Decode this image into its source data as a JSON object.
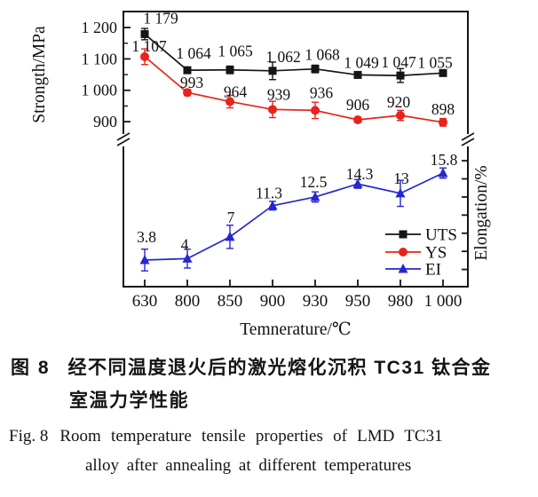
{
  "page": {
    "background": "#ffffff"
  },
  "chart_data": {
    "type": "line",
    "title": "",
    "xlabel": "Temnerature/℃",
    "ylabel_left": "Strongth/MPa",
    "ylabel_right": "Elongation/%",
    "categories": [
      630,
      800,
      850,
      900,
      930,
      950,
      980,
      1000
    ],
    "x_tick_labels": [
      "630",
      "800",
      "850",
      "900",
      "930",
      "950",
      "980",
      "1 000"
    ],
    "left_axis": {
      "unit": "MPa",
      "tick_values": [
        1200,
        1100,
        1000,
        900
      ],
      "tick_labels": [
        "1 200",
        "1 100",
        "1 000",
        "900"
      ],
      "minor_tick_values": [
        1150,
        1050,
        950
      ],
      "broken": true
    },
    "right_axis": {
      "unit": "%",
      "tick_values": [
        2.5,
        5,
        7.5,
        10,
        12.5,
        15,
        17.5
      ],
      "tick_labels": [],
      "broken": true
    },
    "grid": false,
    "legend_position": "inside-right-middle",
    "axis_color": "#151515",
    "series": [
      {
        "name": "UTS",
        "axis": "left",
        "marker": "square",
        "color": "#151515",
        "values": [
          1179,
          1064,
          1065,
          1062,
          1068,
          1049,
          1047,
          1055
        ],
        "point_labels": [
          "1 179",
          "1 064",
          "1 065",
          "1 062",
          "1 068",
          "1 049",
          "1 047",
          "1 055"
        ],
        "errors": [
          18,
          5,
          12,
          28,
          12,
          5,
          22,
          6
        ]
      },
      {
        "name": "YS",
        "axis": "left",
        "marker": "circle",
        "color": "#e8231d",
        "values": [
          1107,
          993,
          964,
          939,
          936,
          906,
          920,
          898
        ],
        "point_labels": [
          "1 107",
          "993",
          "964",
          "939",
          "936",
          "906",
          "920",
          "898"
        ],
        "errors": [
          25,
          10,
          20,
          26,
          26,
          8,
          16,
          12
        ]
      },
      {
        "name": "EI",
        "axis": "right",
        "marker": "triangle",
        "color": "#2727cf",
        "values": [
          3.8,
          4,
          7,
          11.3,
          12.5,
          14.3,
          13,
          15.8
        ],
        "point_labels": [
          "3.8",
          "4",
          "7",
          "11.3",
          "12.5",
          "14.3",
          "13",
          "15.8"
        ],
        "errors": [
          1.5,
          1.3,
          1.6,
          0.6,
          0.7,
          0.6,
          1.8,
          0.7
        ]
      }
    ]
  },
  "caption": {
    "cn_label": "图 8",
    "cn_line1": "经不同温度退火后的激光熔化沉积 TC31 钛合金",
    "cn_line2": "室温力学性能",
    "en_label": "Fig. 8",
    "en_line1": "Room temperature tensile properties of LMD TC31",
    "en_line2": "alloy after annealing at different temperatures"
  }
}
